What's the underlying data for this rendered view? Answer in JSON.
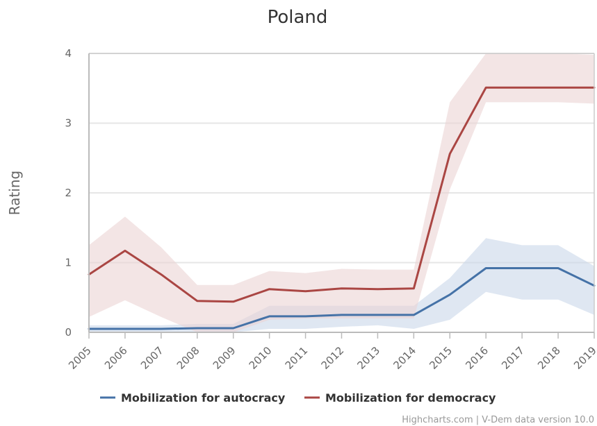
{
  "chart_data": {
    "type": "line",
    "title": "Poland",
    "xlabel": "",
    "ylabel": "Rating",
    "x": [
      2005,
      2006,
      2007,
      2008,
      2009,
      2010,
      2011,
      2012,
      2013,
      2014,
      2015,
      2016,
      2017,
      2018,
      2019
    ],
    "ylim": [
      0,
      4
    ],
    "yticks": [
      0,
      1,
      2,
      3,
      4
    ],
    "grid": true,
    "legend_position": "bottom-center",
    "series": [
      {
        "name": "Mobilization for autocracy",
        "color": "#4572a7",
        "band_color": "#c9d7ea",
        "values": [
          0.05,
          0.05,
          0.05,
          0.06,
          0.06,
          0.23,
          0.23,
          0.25,
          0.25,
          0.25,
          0.54,
          0.92,
          0.92,
          0.92,
          0.67
        ],
        "lower": [
          0.0,
          0.0,
          0.0,
          0.0,
          0.0,
          0.05,
          0.05,
          0.08,
          0.1,
          0.05,
          0.18,
          0.58,
          0.47,
          0.47,
          0.25
        ],
        "upper": [
          0.1,
          0.1,
          0.1,
          0.12,
          0.12,
          0.38,
          0.38,
          0.38,
          0.38,
          0.38,
          0.78,
          1.35,
          1.25,
          1.25,
          0.95
        ]
      },
      {
        "name": "Mobilization for democracy",
        "color": "#aa4643",
        "band_color": "#ebd3d3",
        "values": [
          0.83,
          1.17,
          0.83,
          0.45,
          0.44,
          0.62,
          0.59,
          0.63,
          0.62,
          0.63,
          2.56,
          3.51,
          3.51,
          3.51,
          3.51
        ],
        "lower": [
          0.22,
          0.46,
          0.22,
          0.0,
          0.0,
          0.18,
          0.2,
          0.2,
          0.2,
          0.2,
          2.05,
          3.3,
          3.3,
          3.3,
          3.28
        ],
        "upper": [
          1.25,
          1.66,
          1.22,
          0.68,
          0.68,
          0.88,
          0.85,
          0.91,
          0.9,
          0.9,
          3.3,
          4.0,
          4.0,
          4.0,
          3.98
        ]
      }
    ]
  },
  "credits": "Highcharts.com | V-Dem data version 10.0"
}
